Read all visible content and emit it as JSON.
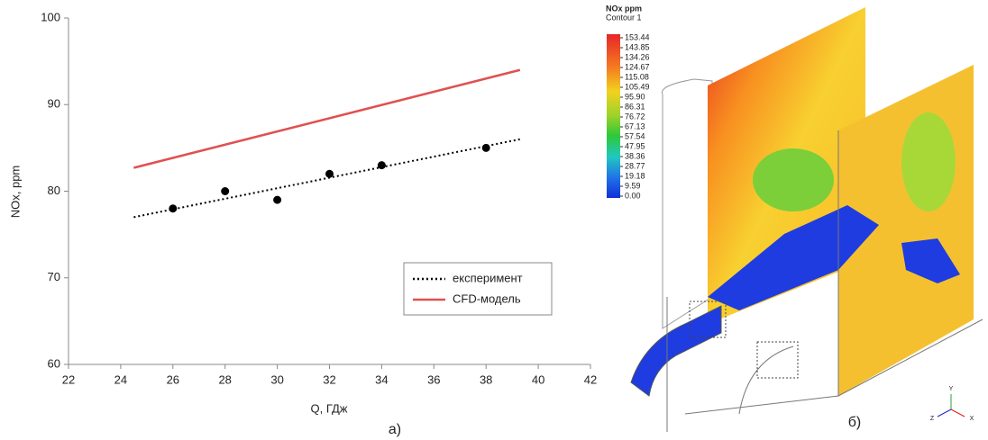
{
  "chart_data": {
    "type": "line",
    "xlabel": "Q, ГДж",
    "ylabel": "NOx, ppm",
    "caption": "а)",
    "xlim": [
      22,
      42
    ],
    "xticks": [
      22,
      24,
      26,
      28,
      30,
      32,
      34,
      36,
      38,
      40,
      42
    ],
    "ylim": [
      60,
      100
    ],
    "yticks": [
      60,
      70,
      80,
      90,
      100
    ],
    "series": [
      {
        "name": "експеримент",
        "color": "#000000",
        "dash": "dotted",
        "x": [
          26,
          28,
          30,
          32,
          34,
          38
        ],
        "values": [
          78,
          80,
          79,
          82,
          83,
          85
        ],
        "trend": {
          "x": [
            24.5,
            39.3
          ],
          "values": [
            77,
            86
          ]
        }
      },
      {
        "name": "CFD-модель",
        "color": "#e05050",
        "dash": "solid",
        "x": [
          24.5,
          39.3
        ],
        "values": [
          82.7,
          94
        ]
      }
    ]
  },
  "figure": {
    "caption": "б)",
    "colorbar": {
      "title": "NOx ppm",
      "subtitle": "Contour 1",
      "ticks": [
        153.44,
        143.85,
        134.26,
        124.67,
        115.08,
        105.49,
        {
          "value": 95.9,
          "label": "95.90"
        },
        86.31,
        76.72,
        67.13,
        57.54,
        47.95,
        38.36,
        28.77,
        19.18,
        9.59,
        {
          "value": 0,
          "label": "0.00"
        }
      ]
    },
    "axes": [
      "Y",
      "X",
      "Z"
    ]
  }
}
